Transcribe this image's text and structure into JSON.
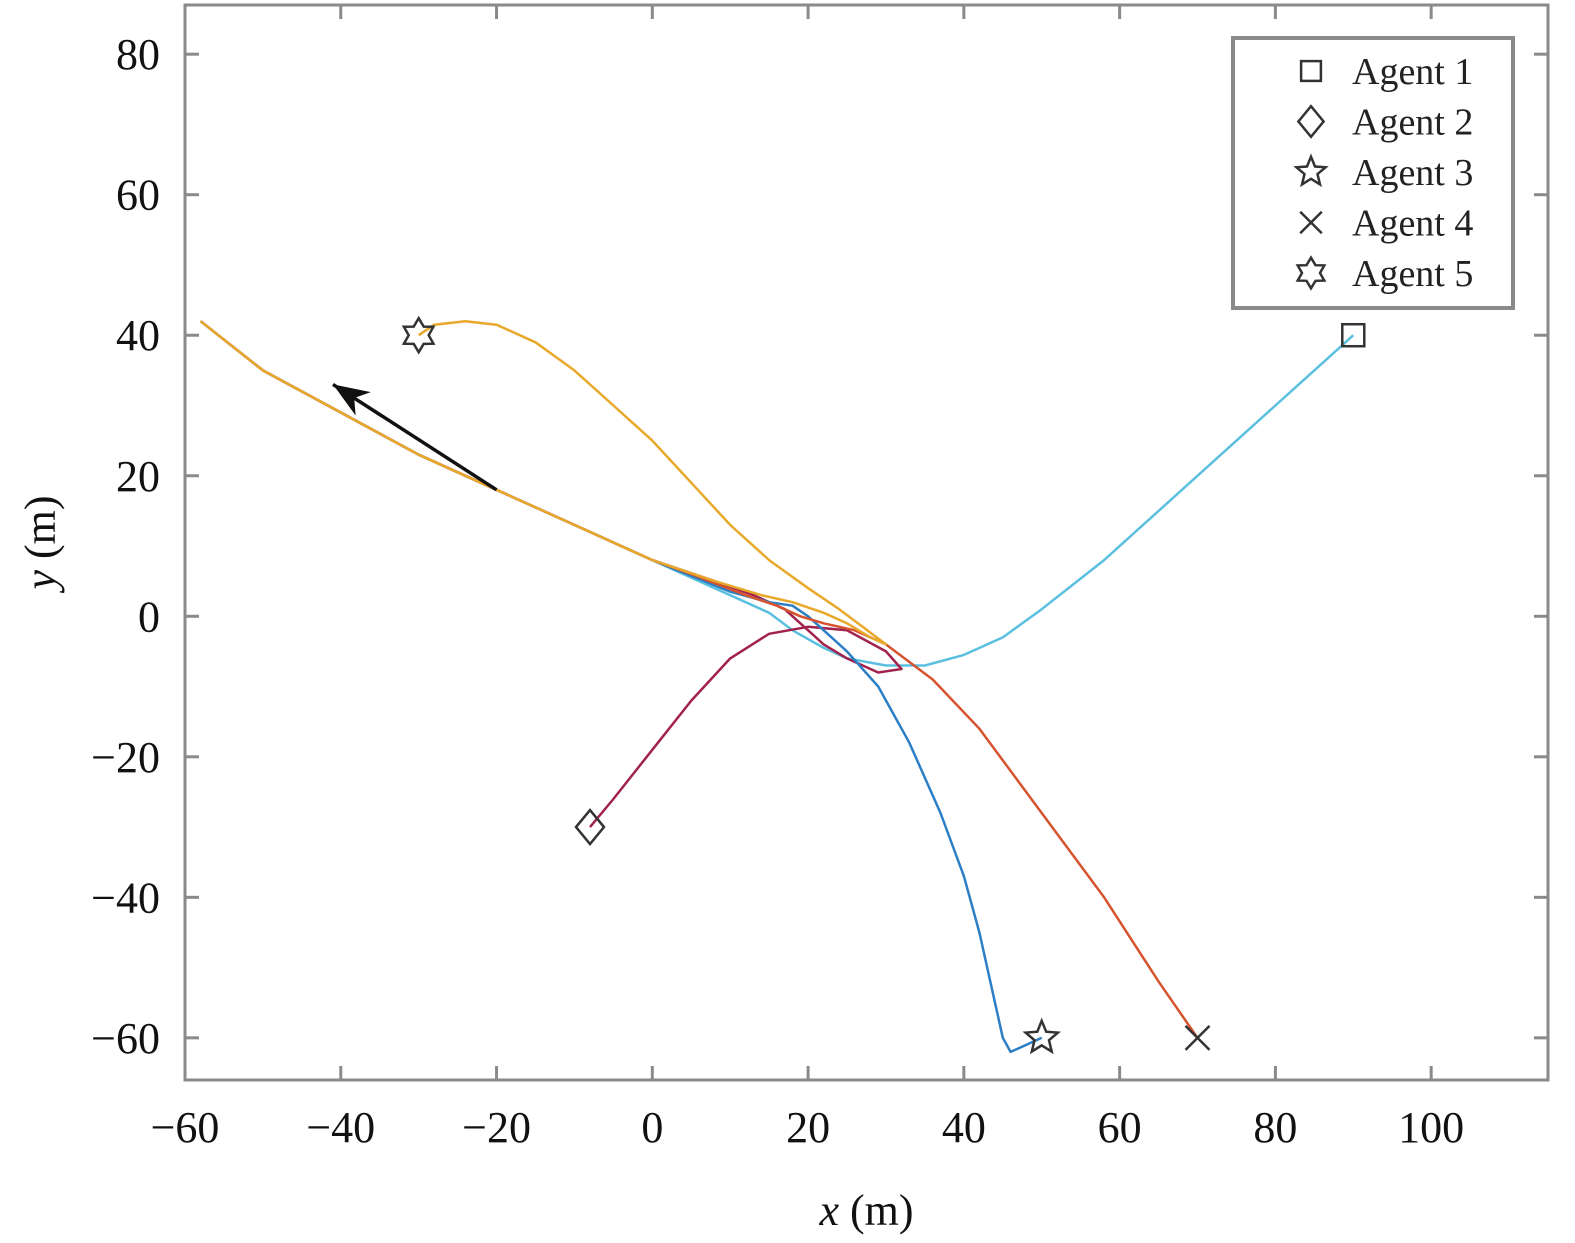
{
  "chart_data": {
    "type": "line",
    "title": "",
    "xlabel": {
      "var": "x",
      "unit": " (m)"
    },
    "ylabel": {
      "var": "y",
      "unit": " (m)"
    },
    "xlim": [
      -60,
      115
    ],
    "ylim": [
      -66,
      87
    ],
    "xticks": [
      -60,
      -40,
      -20,
      0,
      20,
      40,
      60,
      80,
      100
    ],
    "yticks": [
      -60,
      -40,
      -20,
      0,
      20,
      40,
      60,
      80
    ],
    "xtick_labels": [
      "−60",
      "−40",
      "−20",
      "0",
      "20",
      "40",
      "60",
      "80",
      "100"
    ],
    "ytick_labels": [
      "−60",
      "−40",
      "−20",
      "0",
      "20",
      "40",
      "60",
      "80"
    ],
    "grid": false,
    "legend_position": "top-right",
    "series": [
      {
        "name": "Agent 1",
        "marker": "square",
        "color": "#5bc0e0",
        "start": [
          90,
          40
        ],
        "points": [
          [
            90,
            40
          ],
          [
            85,
            35
          ],
          [
            75,
            25
          ],
          [
            65,
            15
          ],
          [
            58,
            8
          ],
          [
            50,
            1
          ],
          [
            45,
            -3
          ],
          [
            40,
            -5.5
          ],
          [
            35,
            -7
          ],
          [
            30,
            -7
          ],
          [
            25,
            -6
          ],
          [
            22,
            -4.5
          ],
          [
            18,
            -2
          ],
          [
            15,
            0.5
          ],
          [
            10,
            3
          ],
          [
            0,
            8
          ],
          [
            -10,
            13
          ],
          [
            -20,
            18
          ],
          [
            -30,
            23
          ],
          [
            -40,
            29
          ],
          [
            -50,
            35
          ],
          [
            -58,
            42
          ]
        ]
      },
      {
        "name": "Agent 2",
        "marker": "diamond",
        "color": "#a2224e",
        "start": [
          -8,
          -30
        ],
        "points": [
          [
            -8,
            -30
          ],
          [
            -5,
            -26
          ],
          [
            0,
            -19
          ],
          [
            5,
            -12
          ],
          [
            10,
            -6
          ],
          [
            15,
            -2.5
          ],
          [
            20,
            -1.5
          ],
          [
            25,
            -2
          ],
          [
            30,
            -5
          ],
          [
            32,
            -7.5
          ],
          [
            29,
            -8
          ],
          [
            25,
            -6
          ],
          [
            22,
            -4
          ],
          [
            20,
            -2
          ],
          [
            17,
            1
          ],
          [
            13,
            3
          ],
          [
            8,
            5
          ],
          [
            0,
            8
          ],
          [
            -10,
            13
          ],
          [
            -20,
            18
          ],
          [
            -30,
            23
          ],
          [
            -40,
            29
          ],
          [
            -50,
            35
          ],
          [
            -58,
            42
          ]
        ]
      },
      {
        "name": "Agent 3",
        "marker": "star",
        "color": "#2c7fc5",
        "start": [
          50,
          -60
        ],
        "points": [
          [
            50,
            -60
          ],
          [
            48,
            -61
          ],
          [
            46,
            -62
          ],
          [
            45,
            -60
          ],
          [
            44,
            -55
          ],
          [
            42,
            -45
          ],
          [
            40,
            -37
          ],
          [
            37,
            -28
          ],
          [
            33,
            -18
          ],
          [
            29,
            -10
          ],
          [
            25,
            -5
          ],
          [
            22,
            -2
          ],
          [
            20,
            0
          ],
          [
            18,
            1.5
          ],
          [
            15,
            2
          ],
          [
            10,
            3.5
          ],
          [
            0,
            8
          ],
          [
            -10,
            13
          ],
          [
            -20,
            18
          ],
          [
            -30,
            23
          ],
          [
            -40,
            29
          ],
          [
            -50,
            35
          ],
          [
            -58,
            42
          ]
        ]
      },
      {
        "name": "Agent 4",
        "marker": "x",
        "color": "#d5532f",
        "start": [
          70,
          -60
        ],
        "points": [
          [
            70,
            -60
          ],
          [
            65,
            -52
          ],
          [
            58,
            -40
          ],
          [
            50,
            -28
          ],
          [
            42,
            -16
          ],
          [
            36,
            -9
          ],
          [
            30,
            -4
          ],
          [
            26,
            -2
          ],
          [
            22,
            -1
          ],
          [
            19,
            0
          ],
          [
            16,
            1.5
          ],
          [
            12,
            3
          ],
          [
            5,
            6
          ],
          [
            0,
            8
          ],
          [
            -10,
            13
          ],
          [
            -20,
            18
          ],
          [
            -30,
            23
          ],
          [
            -40,
            29
          ],
          [
            -50,
            35
          ],
          [
            -58,
            42
          ]
        ]
      },
      {
        "name": "Agent 5",
        "marker": "hexagram",
        "color": "#e8a92b",
        "start": [
          -30,
          40
        ],
        "points": [
          [
            -30,
            40
          ],
          [
            -28,
            41.5
          ],
          [
            -24,
            42
          ],
          [
            -20,
            41.5
          ],
          [
            -15,
            39
          ],
          [
            -10,
            35
          ],
          [
            -5,
            30
          ],
          [
            0,
            25
          ],
          [
            5,
            19
          ],
          [
            10,
            13
          ],
          [
            15,
            8
          ],
          [
            20,
            4
          ],
          [
            24,
            1
          ],
          [
            27,
            -1.5
          ],
          [
            30,
            -4
          ],
          [
            28,
            -3
          ],
          [
            25,
            -1
          ],
          [
            22,
            0.5
          ],
          [
            18,
            2
          ],
          [
            14,
            3
          ],
          [
            8,
            5
          ],
          [
            0,
            8
          ],
          [
            -10,
            13
          ],
          [
            -20,
            18
          ],
          [
            -30,
            23
          ],
          [
            -40,
            29
          ],
          [
            -50,
            35
          ],
          [
            -58,
            42
          ]
        ]
      }
    ],
    "annotation": {
      "type": "arrow",
      "from": [
        -20,
        18
      ],
      "to": [
        -41,
        33
      ],
      "color": "#111111"
    }
  }
}
